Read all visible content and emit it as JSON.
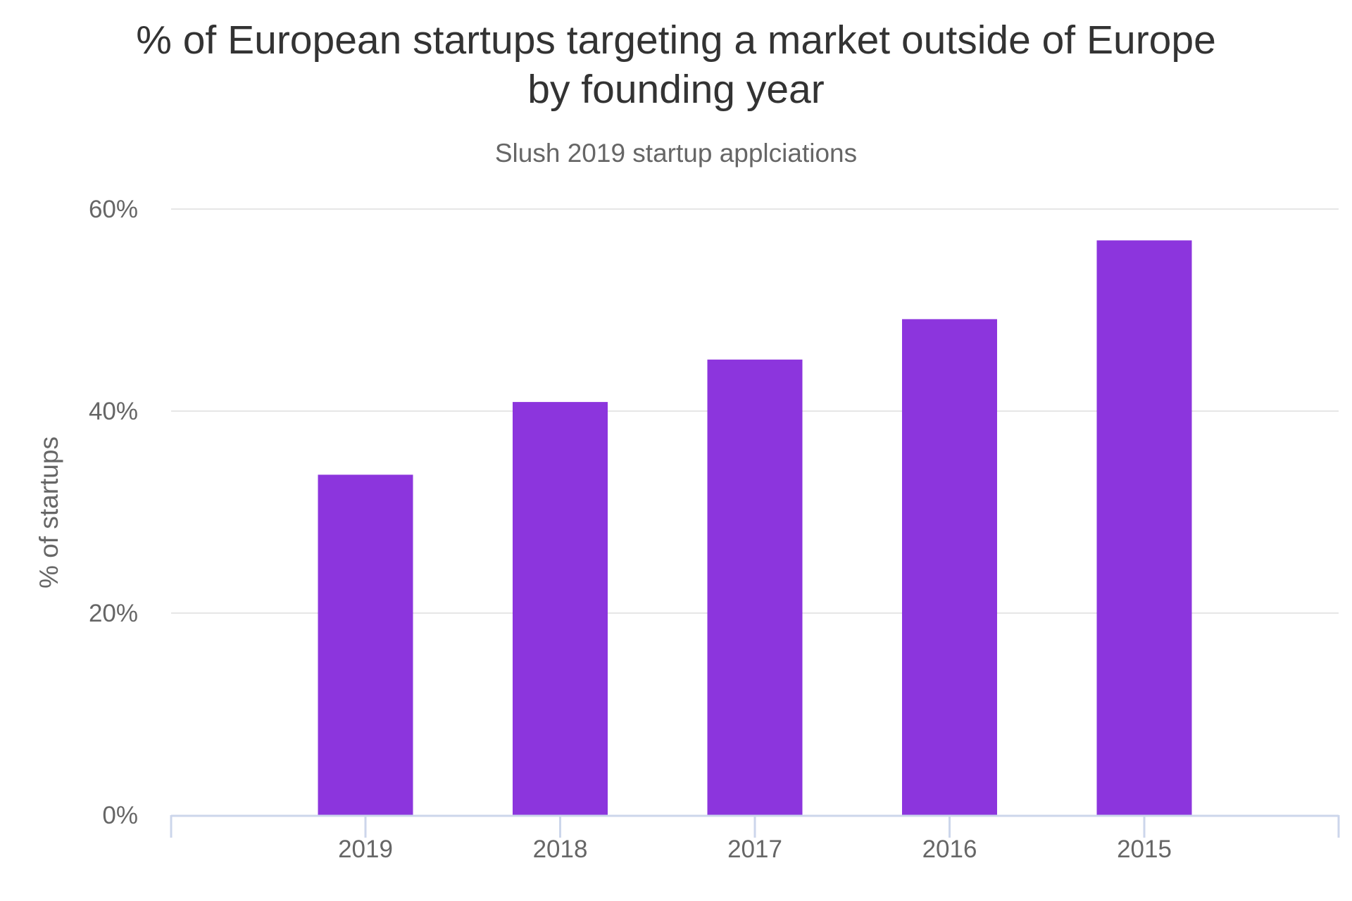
{
  "chart_data": {
    "type": "bar",
    "title": "% of European startups targeting a market outside of Europe\nby founding year",
    "subtitle": "Slush 2019 startup applciations",
    "xlabel": "",
    "ylabel": "% of startups",
    "categories": [
      "2019",
      "2018",
      "2017",
      "2016",
      "2015"
    ],
    "values": [
      33.7,
      40.9,
      45.1,
      49.1,
      56.9
    ],
    "ylim": [
      0,
      60
    ],
    "yticks": [
      0,
      20,
      40,
      60
    ],
    "ytick_labels": [
      "0%",
      "20%",
      "40%",
      "60%"
    ],
    "grid": true,
    "legend": "none",
    "colors": {
      "bar": "#8c35dd",
      "grid": "#e6e6e6",
      "axis": "#ccd6eb"
    }
  }
}
